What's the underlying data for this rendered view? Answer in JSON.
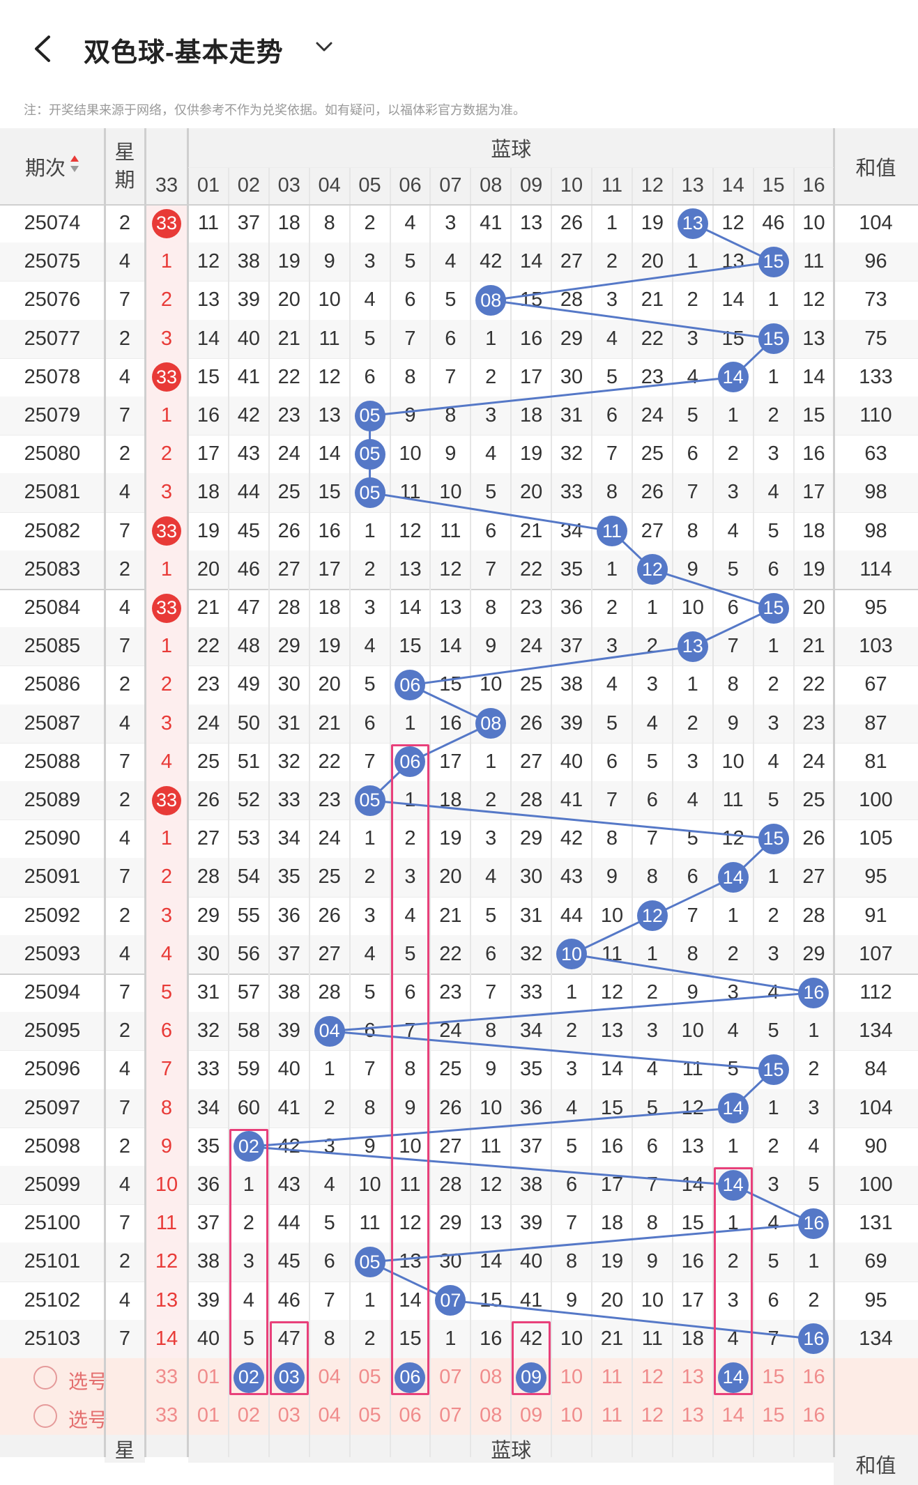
{
  "header": {
    "title": "双色球-基本走势",
    "note": "注：开奖结果来源于网络，仅供参考不作为兑奖依据。如有疑问，以福体彩官方数据为准。"
  },
  "table_header": {
    "period": "期次",
    "weekday": "星期",
    "blue_group": "蓝球",
    "sum": "和值",
    "first_col": "33",
    "blue_cols": [
      "01",
      "02",
      "03",
      "04",
      "05",
      "06",
      "07",
      "08",
      "09",
      "10",
      "11",
      "12",
      "13",
      "14",
      "15",
      "16"
    ]
  },
  "rows": [
    {
      "period": "25074",
      "week": "2",
      "c33": "33",
      "hit33": true,
      "blue": [
        "11",
        "37",
        "18",
        "8",
        "2",
        "4",
        "3",
        "41",
        "13",
        "26",
        "1",
        "19",
        "13",
        "12",
        "46",
        "10"
      ],
      "hitIdx": 12,
      "sum": "104"
    },
    {
      "period": "25075",
      "week": "4",
      "c33": "1",
      "hit33": false,
      "blue": [
        "12",
        "38",
        "19",
        "9",
        "3",
        "5",
        "4",
        "42",
        "14",
        "27",
        "2",
        "20",
        "1",
        "13",
        "15",
        "11"
      ],
      "hitIdx": 14,
      "sum": "96"
    },
    {
      "period": "25076",
      "week": "7",
      "c33": "2",
      "hit33": false,
      "blue": [
        "13",
        "39",
        "20",
        "10",
        "4",
        "6",
        "5",
        "08",
        "15",
        "28",
        "3",
        "21",
        "2",
        "14",
        "1",
        "12"
      ],
      "hitIdx": 7,
      "sum": "73"
    },
    {
      "period": "25077",
      "week": "2",
      "c33": "3",
      "hit33": false,
      "blue": [
        "14",
        "40",
        "21",
        "11",
        "5",
        "7",
        "6",
        "1",
        "16",
        "29",
        "4",
        "22",
        "3",
        "15",
        "15",
        "13"
      ],
      "hitIdx": 14,
      "sum": "75"
    },
    {
      "period": "25078",
      "week": "4",
      "c33": "33",
      "hit33": true,
      "blue": [
        "15",
        "41",
        "22",
        "12",
        "6",
        "8",
        "7",
        "2",
        "17",
        "30",
        "5",
        "23",
        "4",
        "14",
        "1",
        "14"
      ],
      "hitIdx": 13,
      "sum": "133"
    },
    {
      "period": "25079",
      "week": "7",
      "c33": "1",
      "hit33": false,
      "blue": [
        "16",
        "42",
        "23",
        "13",
        "05",
        "9",
        "8",
        "3",
        "18",
        "31",
        "6",
        "24",
        "5",
        "1",
        "2",
        "15"
      ],
      "hitIdx": 4,
      "sum": "110"
    },
    {
      "period": "25080",
      "week": "2",
      "c33": "2",
      "hit33": false,
      "blue": [
        "17",
        "43",
        "24",
        "14",
        "05",
        "10",
        "9",
        "4",
        "19",
        "32",
        "7",
        "25",
        "6",
        "2",
        "3",
        "16"
      ],
      "hitIdx": 4,
      "sum": "63"
    },
    {
      "period": "25081",
      "week": "4",
      "c33": "3",
      "hit33": false,
      "blue": [
        "18",
        "44",
        "25",
        "15",
        "05",
        "11",
        "10",
        "5",
        "20",
        "33",
        "8",
        "26",
        "7",
        "3",
        "4",
        "17"
      ],
      "hitIdx": 4,
      "sum": "98"
    },
    {
      "period": "25082",
      "week": "7",
      "c33": "33",
      "hit33": true,
      "blue": [
        "19",
        "45",
        "26",
        "16",
        "1",
        "12",
        "11",
        "6",
        "21",
        "34",
        "11",
        "27",
        "8",
        "4",
        "5",
        "18"
      ],
      "hitIdx": 10,
      "sum": "98"
    },
    {
      "period": "25083",
      "week": "2",
      "c33": "1",
      "hit33": false,
      "blue": [
        "20",
        "46",
        "27",
        "17",
        "2",
        "13",
        "12",
        "7",
        "22",
        "35",
        "1",
        "12",
        "9",
        "5",
        "6",
        "19"
      ],
      "hitIdx": 11,
      "sum": "114"
    },
    {
      "period": "25084",
      "week": "4",
      "c33": "33",
      "hit33": true,
      "blue": [
        "21",
        "47",
        "28",
        "18",
        "3",
        "14",
        "13",
        "8",
        "23",
        "36",
        "2",
        "1",
        "10",
        "6",
        "15",
        "20"
      ],
      "hitIdx": 14,
      "sum": "95"
    },
    {
      "period": "25085",
      "week": "7",
      "c33": "1",
      "hit33": false,
      "blue": [
        "22",
        "48",
        "29",
        "19",
        "4",
        "15",
        "14",
        "9",
        "24",
        "37",
        "3",
        "2",
        "13",
        "7",
        "1",
        "21"
      ],
      "hitIdx": 12,
      "sum": "103"
    },
    {
      "period": "25086",
      "week": "2",
      "c33": "2",
      "hit33": false,
      "blue": [
        "23",
        "49",
        "30",
        "20",
        "5",
        "06",
        "15",
        "10",
        "25",
        "38",
        "4",
        "3",
        "1",
        "8",
        "2",
        "22"
      ],
      "hitIdx": 5,
      "sum": "67"
    },
    {
      "period": "25087",
      "week": "4",
      "c33": "3",
      "hit33": false,
      "blue": [
        "24",
        "50",
        "31",
        "21",
        "6",
        "1",
        "16",
        "08",
        "26",
        "39",
        "5",
        "4",
        "2",
        "9",
        "3",
        "23"
      ],
      "hitIdx": 7,
      "sum": "87"
    },
    {
      "period": "25088",
      "week": "7",
      "c33": "4",
      "hit33": false,
      "blue": [
        "25",
        "51",
        "32",
        "22",
        "7",
        "06",
        "17",
        "1",
        "27",
        "40",
        "6",
        "5",
        "3",
        "10",
        "4",
        "24"
      ],
      "hitIdx": 5,
      "sum": "81"
    },
    {
      "period": "25089",
      "week": "2",
      "c33": "33",
      "hit33": true,
      "blue": [
        "26",
        "52",
        "33",
        "23",
        "05",
        "1",
        "18",
        "2",
        "28",
        "41",
        "7",
        "6",
        "4",
        "11",
        "5",
        "25"
      ],
      "hitIdx": 4,
      "sum": "100"
    },
    {
      "period": "25090",
      "week": "4",
      "c33": "1",
      "hit33": false,
      "blue": [
        "27",
        "53",
        "34",
        "24",
        "1",
        "2",
        "19",
        "3",
        "29",
        "42",
        "8",
        "7",
        "5",
        "12",
        "15",
        "26"
      ],
      "hitIdx": 14,
      "sum": "105"
    },
    {
      "period": "25091",
      "week": "7",
      "c33": "2",
      "hit33": false,
      "blue": [
        "28",
        "54",
        "35",
        "25",
        "2",
        "3",
        "20",
        "4",
        "30",
        "43",
        "9",
        "8",
        "6",
        "14",
        "1",
        "27"
      ],
      "hitIdx": 13,
      "sum": "95"
    },
    {
      "period": "25092",
      "week": "2",
      "c33": "3",
      "hit33": false,
      "blue": [
        "29",
        "55",
        "36",
        "26",
        "3",
        "4",
        "21",
        "5",
        "31",
        "44",
        "10",
        "12",
        "7",
        "1",
        "2",
        "28"
      ],
      "hitIdx": 11,
      "sum": "91"
    },
    {
      "period": "25093",
      "week": "4",
      "c33": "4",
      "hit33": false,
      "blue": [
        "30",
        "56",
        "37",
        "27",
        "4",
        "5",
        "22",
        "6",
        "32",
        "10",
        "11",
        "1",
        "8",
        "2",
        "3",
        "29"
      ],
      "hitIdx": 9,
      "sum": "107"
    },
    {
      "period": "25094",
      "week": "7",
      "c33": "5",
      "hit33": false,
      "blue": [
        "31",
        "57",
        "38",
        "28",
        "5",
        "6",
        "23",
        "7",
        "33",
        "1",
        "12",
        "2",
        "9",
        "3",
        "4",
        "16"
      ],
      "hitIdx": 15,
      "sum": "112"
    },
    {
      "period": "25095",
      "week": "2",
      "c33": "6",
      "hit33": false,
      "blue": [
        "32",
        "58",
        "39",
        "04",
        "6",
        "7",
        "24",
        "8",
        "34",
        "2",
        "13",
        "3",
        "10",
        "4",
        "5",
        "1"
      ],
      "hitIdx": 3,
      "sum": "134"
    },
    {
      "period": "25096",
      "week": "4",
      "c33": "7",
      "hit33": false,
      "blue": [
        "33",
        "59",
        "40",
        "1",
        "7",
        "8",
        "25",
        "9",
        "35",
        "3",
        "14",
        "4",
        "11",
        "5",
        "15",
        "2"
      ],
      "hitIdx": 14,
      "sum": "84"
    },
    {
      "period": "25097",
      "week": "7",
      "c33": "8",
      "hit33": false,
      "blue": [
        "34",
        "60",
        "41",
        "2",
        "8",
        "9",
        "26",
        "10",
        "36",
        "4",
        "15",
        "5",
        "12",
        "14",
        "1",
        "3"
      ],
      "hitIdx": 13,
      "sum": "104"
    },
    {
      "period": "25098",
      "week": "2",
      "c33": "9",
      "hit33": false,
      "blue": [
        "35",
        "02",
        "42",
        "3",
        "9",
        "10",
        "27",
        "11",
        "37",
        "5",
        "16",
        "6",
        "13",
        "1",
        "2",
        "4"
      ],
      "hitIdx": 1,
      "sum": "90"
    },
    {
      "period": "25099",
      "week": "4",
      "c33": "10",
      "hit33": false,
      "blue": [
        "36",
        "1",
        "43",
        "4",
        "10",
        "11",
        "28",
        "12",
        "38",
        "6",
        "17",
        "7",
        "14",
        "14",
        "3",
        "5"
      ],
      "hitIdx": 13,
      "sum": "100"
    },
    {
      "period": "25100",
      "week": "7",
      "c33": "11",
      "hit33": false,
      "blue": [
        "37",
        "2",
        "44",
        "5",
        "11",
        "12",
        "29",
        "13",
        "39",
        "7",
        "18",
        "8",
        "15",
        "1",
        "4",
        "16"
      ],
      "hitIdx": 15,
      "sum": "131"
    },
    {
      "period": "25101",
      "week": "2",
      "c33": "12",
      "hit33": false,
      "blue": [
        "38",
        "3",
        "45",
        "6",
        "05",
        "13",
        "30",
        "14",
        "40",
        "8",
        "19",
        "9",
        "16",
        "2",
        "5",
        "1"
      ],
      "hitIdx": 4,
      "sum": "69"
    },
    {
      "period": "25102",
      "week": "4",
      "c33": "13",
      "hit33": false,
      "blue": [
        "39",
        "4",
        "46",
        "7",
        "1",
        "14",
        "07",
        "15",
        "41",
        "9",
        "20",
        "10",
        "17",
        "3",
        "6",
        "2"
      ],
      "hitIdx": 6,
      "sum": "95"
    },
    {
      "period": "25103",
      "week": "7",
      "c33": "14",
      "hit33": false,
      "blue": [
        "40",
        "5",
        "47",
        "8",
        "2",
        "15",
        "1",
        "16",
        "42",
        "10",
        "21",
        "11",
        "18",
        "4",
        "7",
        "16"
      ],
      "hitIdx": 15,
      "sum": "134"
    }
  ],
  "select_rows": [
    {
      "label": "选号",
      "c33": "33",
      "nums": [
        "01",
        "02",
        "03",
        "04",
        "05",
        "06",
        "07",
        "08",
        "09",
        "10",
        "11",
        "12",
        "13",
        "14",
        "15",
        "16"
      ],
      "selected": [
        1,
        2,
        5,
        8,
        13
      ]
    },
    {
      "label": "选号",
      "c33": "33",
      "nums": [
        "01",
        "02",
        "03",
        "04",
        "05",
        "06",
        "07",
        "08",
        "09",
        "10",
        "11",
        "12",
        "13",
        "14",
        "15",
        "16"
      ],
      "selected": []
    }
  ],
  "footer_header": {
    "weekday": "星",
    "blue_group": "蓝球",
    "sum": "和值"
  },
  "colors": {
    "red": "#e83a37",
    "blue": "#5578c7",
    "pink": "#e8407a",
    "header_bg": "#f2f2f2"
  }
}
